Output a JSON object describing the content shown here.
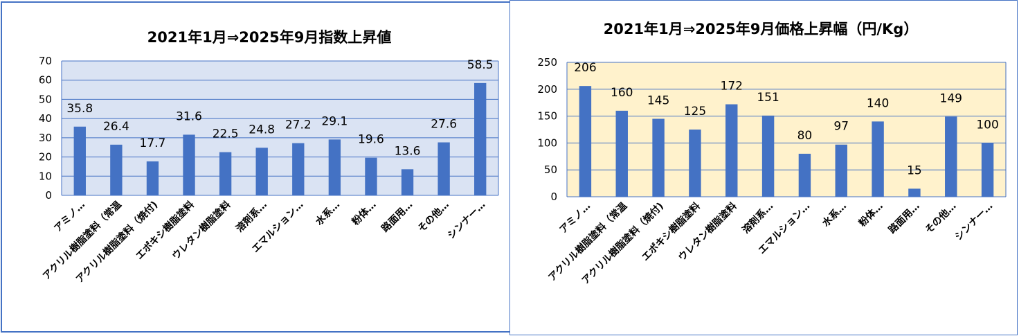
{
  "chart_data": [
    {
      "type": "bar",
      "title": "2021年1月⇒2025年9月指数上昇値",
      "categories": [
        "アミノ…",
        "アクリル樹脂塗料（常温",
        "アクリル樹脂塗料（焼付)",
        "エポキシ樹脂塗料",
        "ウレタン樹脂塗料",
        "溶剤系…",
        "エマルション…",
        "水系…",
        "粉体…",
        "路面用…",
        "その他…",
        "シンナー…"
      ],
      "values": [
        35.8,
        26.4,
        17.7,
        31.6,
        22.5,
        24.8,
        27.2,
        29.1,
        19.6,
        13.6,
        27.6,
        58.5
      ],
      "data_labels": [
        "35.8",
        "26.4",
        "17.7",
        "31.6",
        "22.5",
        "24.8",
        "27.2",
        "29.1",
        "19.6",
        "13.6",
        "27.6",
        "58.5"
      ],
      "y_ticks": [
        "0",
        "10",
        "20",
        "30",
        "40",
        "50",
        "60",
        "70"
      ],
      "ylim": [
        0,
        70
      ],
      "grid": true,
      "colors": {
        "bar": "#4472c4",
        "plot_bg": "#dae3f3",
        "grid": "#4472c4"
      }
    },
    {
      "type": "bar",
      "title": "2021年1月⇒2025年9月価格上昇幅（円/Kg）",
      "categories": [
        "アミノ…",
        "アクリル樹脂塗料（常温",
        "アクリル樹脂塗料（焼付)",
        "エポキシ樹脂塗料",
        "ウレタン樹脂塗料",
        "溶剤系…",
        "エマルション…",
        "水系…",
        "粉体…",
        "路面用…",
        "その他…",
        "シンナー…"
      ],
      "values": [
        206,
        160,
        145,
        125,
        172,
        151,
        80,
        97,
        140,
        15,
        149,
        100
      ],
      "data_labels": [
        "206",
        "160",
        "145",
        "125",
        "172",
        "151",
        "80",
        "97",
        "140",
        "15",
        "149",
        "100"
      ],
      "y_ticks": [
        "0",
        "50",
        "100",
        "150",
        "200",
        "250"
      ],
      "ylim": [
        0,
        250
      ],
      "grid": true,
      "colors": {
        "bar": "#4472c4",
        "plot_bg": "#fff2cc",
        "grid": "#4472c4"
      }
    }
  ]
}
